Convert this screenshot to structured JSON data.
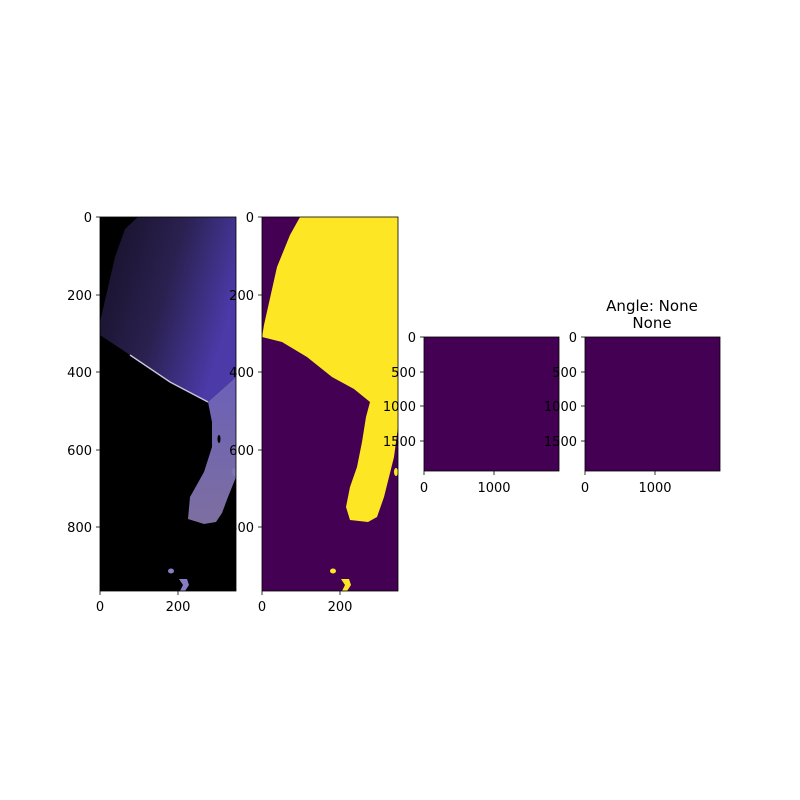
{
  "chart_data": [
    {
      "type": "heatmap",
      "title": "",
      "image": "rgb photo of segmented object on black background",
      "xlim": [
        0,
        350
      ],
      "ylim": [
        970,
        0
      ],
      "xticks": [
        0,
        200
      ],
      "yticks": [
        0,
        200,
        400,
        600,
        800
      ]
    },
    {
      "type": "heatmap",
      "title": "",
      "image": "binary mask (yellow object on purple background)",
      "colors": {
        "background": "#440154",
        "foreground": "#fde725"
      },
      "xlim": [
        0,
        350
      ],
      "ylim": [
        970,
        0
      ],
      "xticks": [
        0,
        200
      ],
      "yticks": [
        0,
        200,
        400,
        600,
        800
      ]
    },
    {
      "type": "heatmap",
      "title": "",
      "image": "uniform empty array",
      "colors": {
        "background": "#440154"
      },
      "xlim": [
        0,
        1950
      ],
      "ylim": [
        1950,
        0
      ],
      "xticks": [
        0,
        1000
      ],
      "yticks": [
        0,
        500,
        1000,
        1500
      ]
    },
    {
      "type": "heatmap",
      "title_lines": [
        "Angle: None",
        "None"
      ],
      "image": "uniform empty array",
      "colors": {
        "background": "#440154"
      },
      "xlim": [
        0,
        1950
      ],
      "ylim": [
        1950,
        0
      ],
      "xticks": [
        0,
        1000
      ],
      "yticks": [
        0,
        500,
        1000,
        1500
      ]
    }
  ]
}
